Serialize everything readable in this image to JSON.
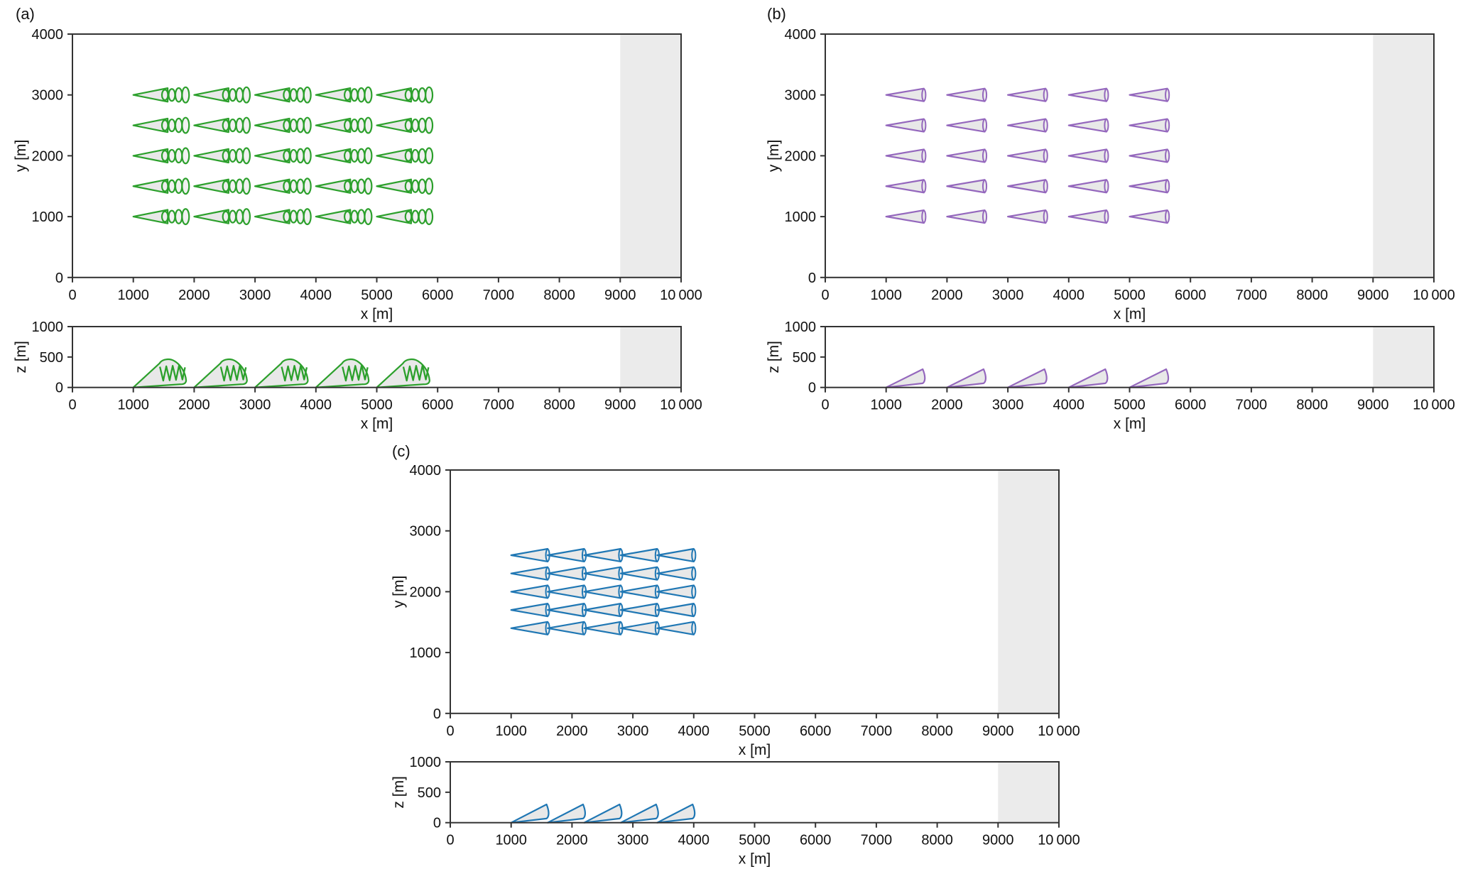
{
  "figure": {
    "background": "#ffffff",
    "spine_color": "#333333",
    "text_color": "#111111"
  },
  "chart_data": [
    {
      "id": "a",
      "label": "(a)",
      "type": "scatter",
      "glyph_style": "helix",
      "glyph_description": "wind turbine wake cone with helical spiral",
      "stroke_color": "#2ca02c",
      "fill_color": "#e8e8e8",
      "loop_fill_color": "#efefef",
      "shaded_color": "#ebebeb",
      "glyph": {
        "cone_length": 565,
        "cone_half_width": 112,
        "loop_count": 4,
        "loop_start": 520,
        "loop_spacing": 113,
        "extent": 910
      },
      "top_view": {
        "xlabel": "x [m]",
        "ylabel": "y [m]",
        "xlim": [
          0,
          10000
        ],
        "ylim": [
          0,
          4000
        ],
        "xticks": [
          0,
          1000,
          2000,
          3000,
          4000,
          5000,
          6000,
          7000,
          8000,
          9000,
          10000
        ],
        "xtick_labels": [
          "0",
          "1000",
          "2000",
          "3000",
          "4000",
          "5000",
          "6000",
          "7000",
          "8000",
          "9000",
          "10 000"
        ],
        "yticks": [
          0,
          1000,
          2000,
          3000,
          4000
        ],
        "ytick_labels": [
          "0",
          "1000",
          "2000",
          "3000",
          "4000"
        ],
        "shaded_region_x": [
          9000,
          10000
        ],
        "unit_x": [
          1000,
          2000,
          3000,
          4000,
          5000
        ],
        "unit_y": [
          1000,
          1500,
          2000,
          2500,
          3000
        ]
      },
      "side_view": {
        "xlabel": "x [m]",
        "ylabel": "z [m]",
        "xlim": [
          0,
          10000
        ],
        "ylim": [
          0,
          1000
        ],
        "xticks": [
          0,
          1000,
          2000,
          3000,
          4000,
          5000,
          6000,
          7000,
          8000,
          9000,
          10000
        ],
        "xtick_labels": [
          "0",
          "1000",
          "2000",
          "3000",
          "4000",
          "5000",
          "6000",
          "7000",
          "8000",
          "9000",
          "10 000"
        ],
        "yticks": [
          0,
          500,
          1000
        ],
        "ytick_labels": [
          "0",
          "500",
          "1000"
        ],
        "shaded_region_x": [
          9000,
          10000
        ],
        "unit_x": [
          1000,
          2000,
          3000,
          4000,
          5000
        ],
        "wake_peak_z": 470,
        "wake_length": 900
      }
    },
    {
      "id": "b",
      "label": "(b)",
      "type": "scatter",
      "glyph_style": "cone",
      "glyph_description": "plain wake cone",
      "stroke_color": "#9467bd",
      "fill_color": "#e8e8e8",
      "loop_fill_color": "#ececec",
      "shaded_color": "#ebebeb",
      "glyph": {
        "cone_length": 620,
        "cone_half_width": 105,
        "base_rx": 30
      },
      "top_view": {
        "xlabel": "x [m]",
        "ylabel": "y [m]",
        "xlim": [
          0,
          10000
        ],
        "ylim": [
          0,
          4000
        ],
        "xticks": [
          0,
          1000,
          2000,
          3000,
          4000,
          5000,
          6000,
          7000,
          8000,
          9000,
          10000
        ],
        "xtick_labels": [
          "0",
          "1000",
          "2000",
          "3000",
          "4000",
          "5000",
          "6000",
          "7000",
          "8000",
          "9000",
          "10 000"
        ],
        "yticks": [
          0,
          1000,
          2000,
          3000,
          4000
        ],
        "ytick_labels": [
          "0",
          "1000",
          "2000",
          "3000",
          "4000"
        ],
        "shaded_region_x": [
          9000,
          10000
        ],
        "unit_x": [
          1000,
          2000,
          3000,
          4000,
          5000
        ],
        "unit_y": [
          1000,
          1500,
          2000,
          2500,
          3000
        ]
      },
      "side_view": {
        "xlabel": "x [m]",
        "ylabel": "z [m]",
        "xlim": [
          0,
          10000
        ],
        "ylim": [
          0,
          1000
        ],
        "xticks": [
          0,
          1000,
          2000,
          3000,
          4000,
          5000,
          6000,
          7000,
          8000,
          9000,
          10000
        ],
        "xtick_labels": [
          "0",
          "1000",
          "2000",
          "3000",
          "4000",
          "5000",
          "6000",
          "7000",
          "8000",
          "9000",
          "10 000"
        ],
        "yticks": [
          0,
          500,
          1000
        ],
        "ytick_labels": [
          "0",
          "500",
          "1000"
        ],
        "shaded_region_x": [
          9000,
          10000
        ],
        "unit_x": [
          1000,
          2000,
          3000,
          4000,
          5000
        ],
        "wake_peak_z": 300,
        "wake_length": 620
      }
    },
    {
      "id": "c",
      "label": "(c)",
      "type": "scatter",
      "glyph_style": "cone",
      "glyph_description": "plain wake cone, densely packed farm",
      "stroke_color": "#1f77b4",
      "fill_color": "#e8e8e8",
      "loop_fill_color": "#ececec",
      "shaded_color": "#ebebeb",
      "glyph": {
        "cone_length": 600,
        "cone_half_width": 105,
        "base_rx": 30
      },
      "top_view": {
        "xlabel": "x [m]",
        "ylabel": "y [m]",
        "xlim": [
          0,
          10000
        ],
        "ylim": [
          0,
          4000
        ],
        "xticks": [
          0,
          1000,
          2000,
          3000,
          4000,
          5000,
          6000,
          7000,
          8000,
          9000,
          10000
        ],
        "xtick_labels": [
          "0",
          "1000",
          "2000",
          "3000",
          "4000",
          "5000",
          "6000",
          "7000",
          "8000",
          "9000",
          "10 000"
        ],
        "yticks": [
          0,
          1000,
          2000,
          3000,
          4000
        ],
        "ytick_labels": [
          "0",
          "1000",
          "2000",
          "3000",
          "4000"
        ],
        "shaded_region_x": [
          9000,
          10000
        ],
        "unit_x": [
          1000,
          1600,
          2200,
          2800,
          3400
        ],
        "unit_y": [
          1400,
          1700,
          2000,
          2300,
          2600
        ]
      },
      "side_view": {
        "xlabel": "x [m]",
        "ylabel": "z [m]",
        "xlim": [
          0,
          10000
        ],
        "ylim": [
          0,
          1000
        ],
        "xticks": [
          0,
          1000,
          2000,
          3000,
          4000,
          5000,
          6000,
          7000,
          8000,
          9000,
          10000
        ],
        "xtick_labels": [
          "0",
          "1000",
          "2000",
          "3000",
          "4000",
          "5000",
          "6000",
          "7000",
          "8000",
          "9000",
          "10 000"
        ],
        "yticks": [
          0,
          500,
          1000
        ],
        "ytick_labels": [
          "0",
          "500",
          "1000"
        ],
        "shaded_region_x": [
          9000,
          10000
        ],
        "unit_x": [
          1000,
          1600,
          2200,
          2800,
          3400
        ],
        "wake_peak_z": 300,
        "wake_length": 600
      }
    }
  ]
}
